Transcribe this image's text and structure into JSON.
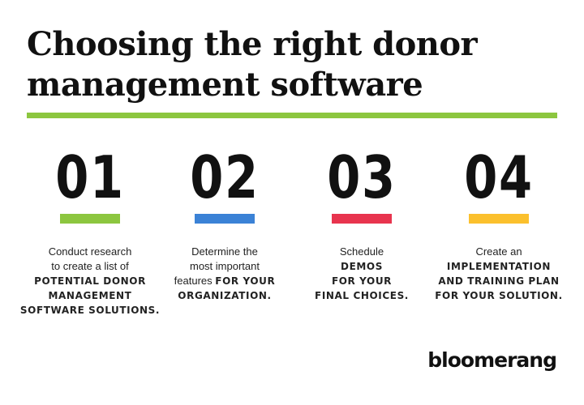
{
  "title": {
    "line1": "Choosing the right donor",
    "line2": "management software"
  },
  "colors": {
    "rule": "#8CC63F",
    "step1": "#8CC63F",
    "step2": "#3B82D6",
    "step3": "#E8344E",
    "step4": "#FBC02D"
  },
  "steps": [
    {
      "number": "01",
      "l1": "Conduct research",
      "l2": "to create a list of",
      "b1": "POTENTIAL DONOR",
      "b2": "MANAGEMENT",
      "b3": "SOFTWARE SOLUTIONS."
    },
    {
      "number": "02",
      "l1": "Determine the",
      "l2": "most important",
      "l3": "features",
      "b1": "FOR YOUR",
      "b2": "ORGANIZATION."
    },
    {
      "number": "03",
      "l1": "Schedule",
      "b1": "DEMOS",
      "b2": "FOR YOUR",
      "b3": "FINAL CHOICES."
    },
    {
      "number": "04",
      "l1": "Create an",
      "b1": "IMPLEMENTATION",
      "b2": "AND TRAINING PLAN",
      "b3": "FOR YOUR SOLUTION."
    }
  ],
  "logo": "bloomerang"
}
